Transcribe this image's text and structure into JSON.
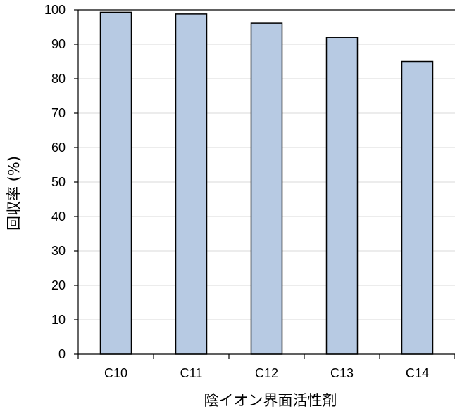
{
  "chart_data": {
    "type": "bar",
    "categories": [
      "C10",
      "C11",
      "C12",
      "C13",
      "C14"
    ],
    "values": [
      99.3,
      98.8,
      96.1,
      92.0,
      85.0
    ],
    "title": "",
    "xlabel": "陰イオン界面活性剤",
    "ylabel": "回収率 (%)",
    "ylim": [
      0,
      100
    ],
    "yticks": [
      0,
      10,
      20,
      30,
      40,
      50,
      60,
      70,
      80,
      90,
      100
    ],
    "grid": true,
    "legend": "none",
    "colors": {
      "bar_fill": "#b7cae3",
      "bar_stroke": "#000000",
      "grid": "#d9d9d9",
      "axis": "#000000"
    }
  }
}
